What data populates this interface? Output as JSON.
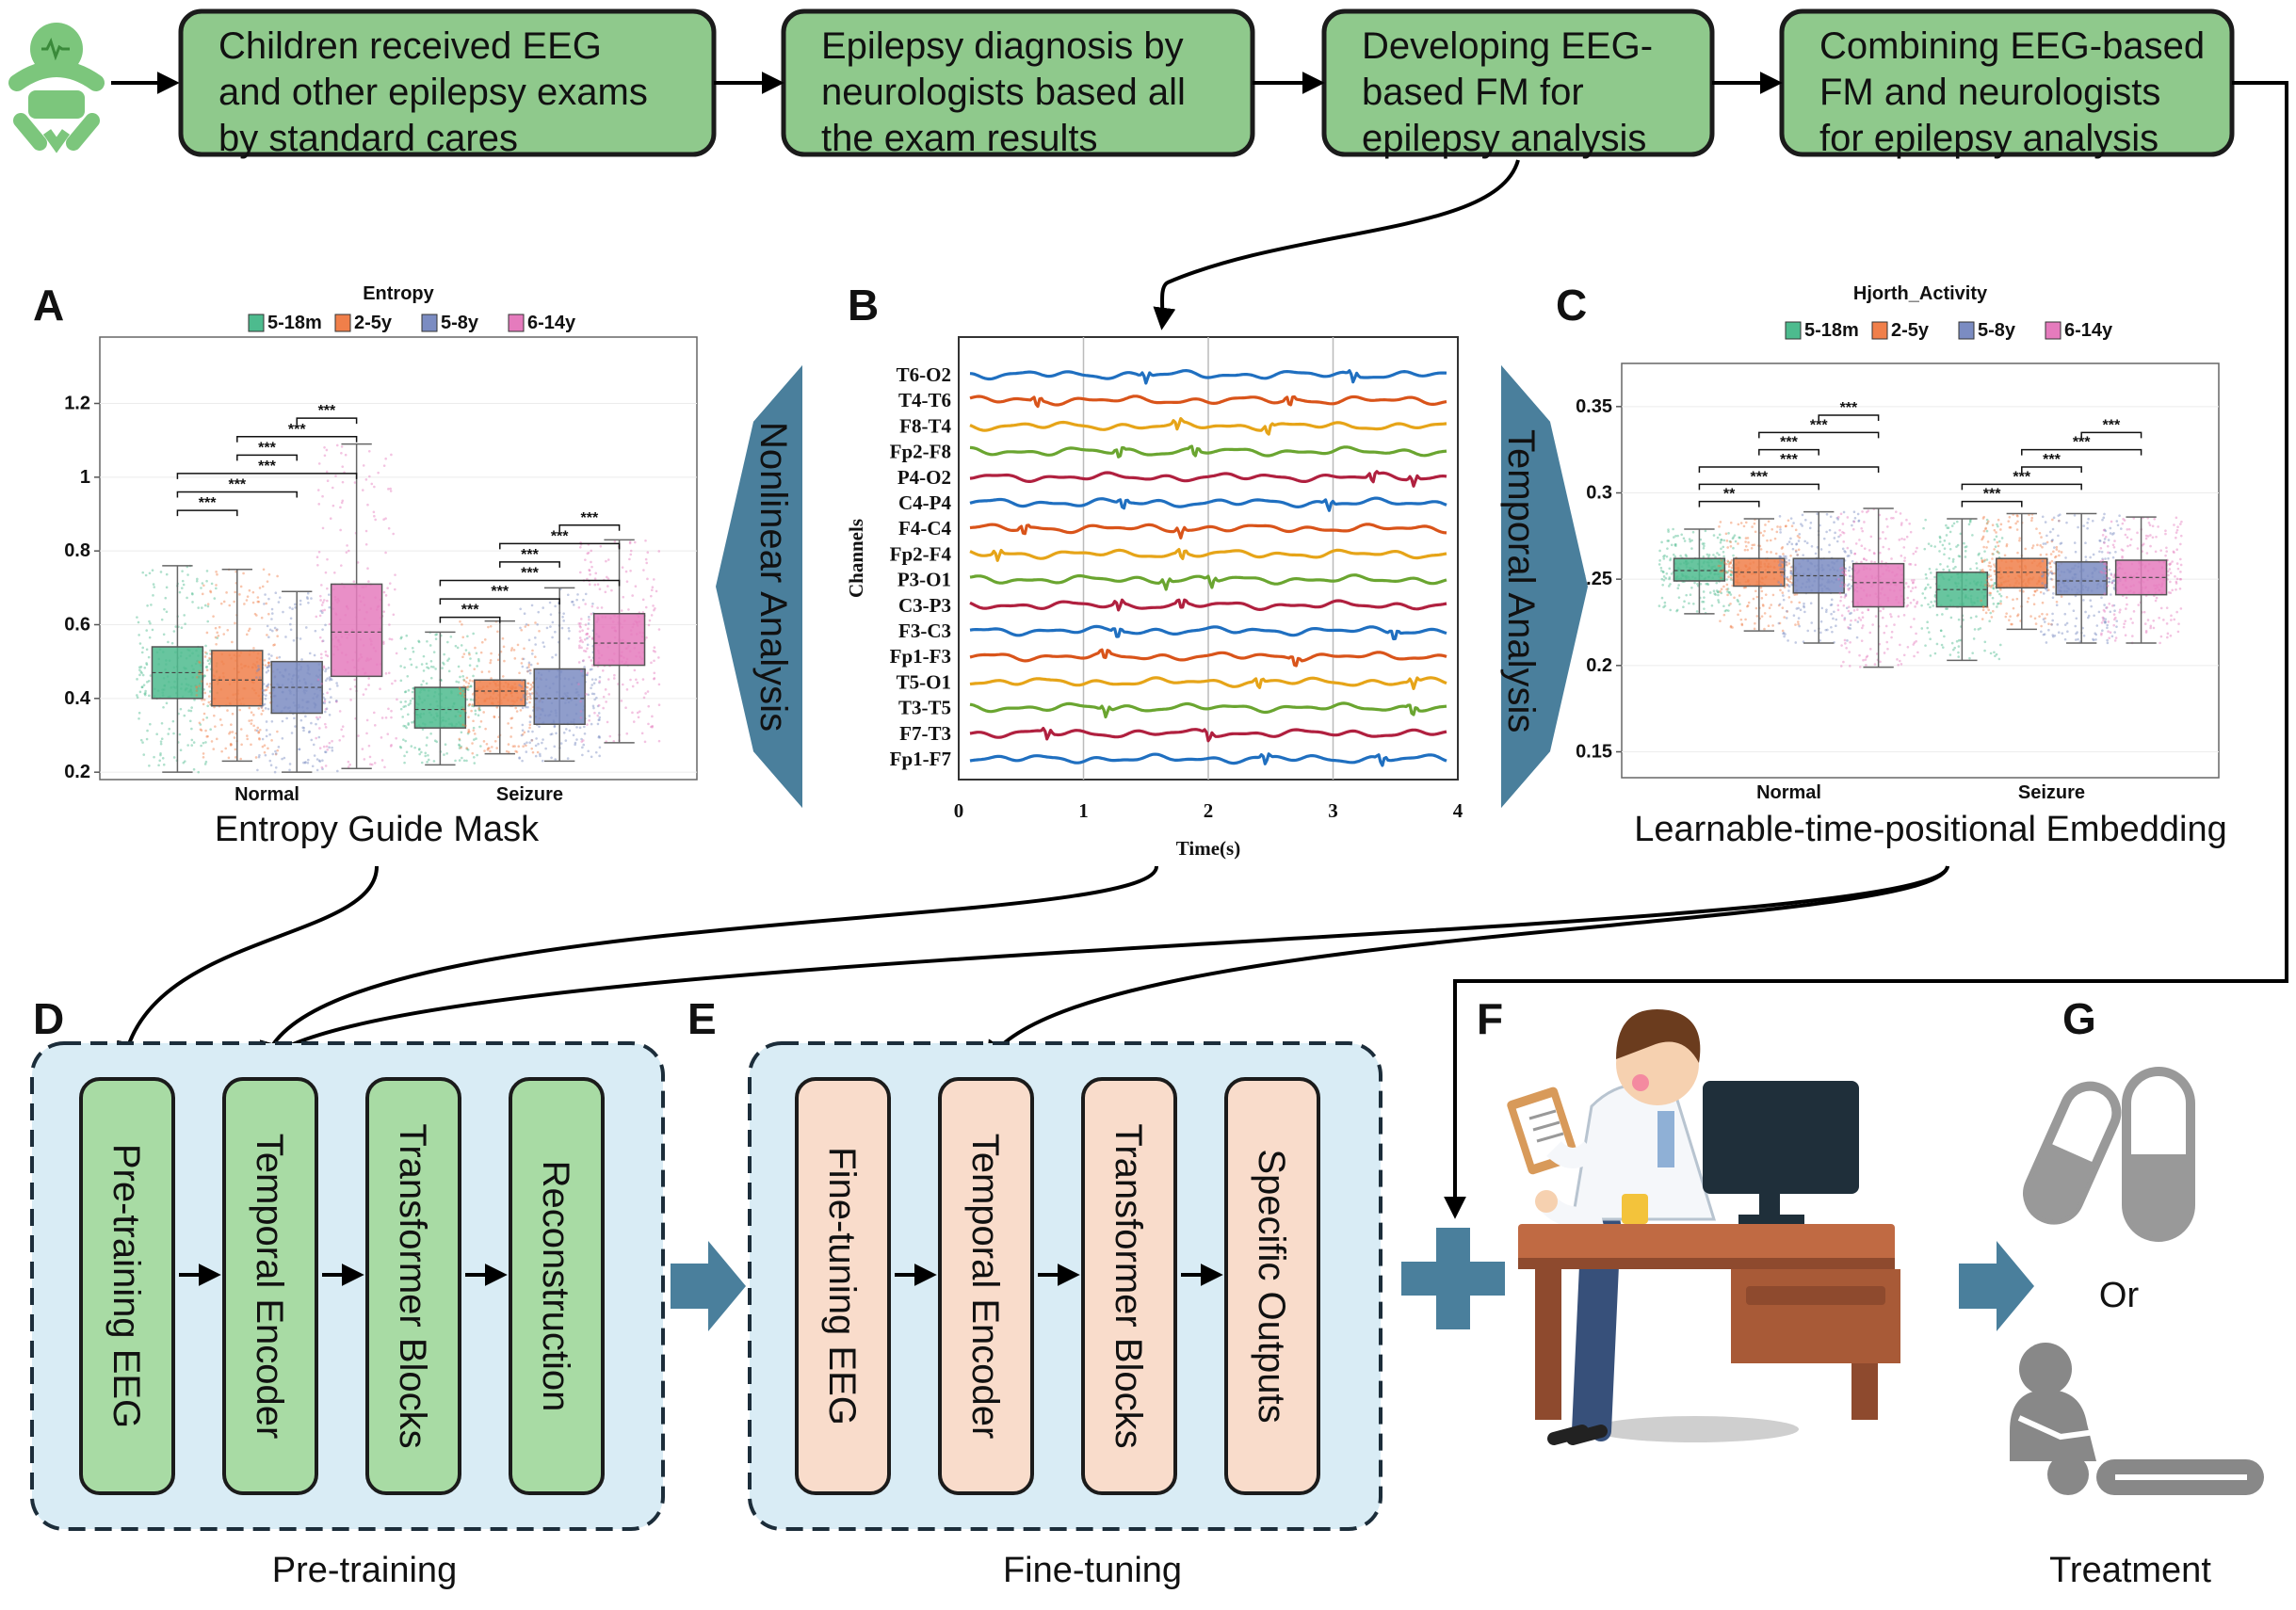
{
  "flow": [
    {
      "lines": [
        "Children received EEG",
        "and other epilepsy exams",
        "by standard cares"
      ]
    },
    {
      "lines": [
        "Epilepsy diagnosis by",
        "neurologists based all",
        "the exam results"
      ]
    },
    {
      "lines": [
        "Developing EEG-",
        "based FM for",
        "epilepsy analysis"
      ]
    },
    {
      "lines": [
        "Combining EEG-based",
        "FM and neurologists",
        "for epilepsy analysis"
      ]
    }
  ],
  "panel_letters": [
    "A",
    "B",
    "C",
    "D",
    "E",
    "F",
    "G"
  ],
  "captions": {
    "a": "Entropy Guide Mask",
    "c": "Learnable-time-positional Embedding",
    "nonlinear": "Nonlinear Analysis",
    "temporal": "Temporal Analysis",
    "pretraining": "Pre-training",
    "finetuning": "Fine-tuning",
    "treatment": "Treatment",
    "or": "Or"
  },
  "colors": {
    "flow_box": "#8fc98c",
    "pretrain_block": "#a8dba4",
    "finetune_block": "#f9dccb",
    "module_bg": "#d9ecf5",
    "arrow_teal": "#4a7f9c",
    "group": [
      "#4dbb8e",
      "#f07f4a",
      "#7b8cc2",
      "#e57bbd"
    ]
  },
  "chart_data": [
    {
      "type": "box",
      "title": "Entropy",
      "legend": [
        "5-18m",
        "2-5y",
        "5-8y",
        "6-14y"
      ],
      "legend_position": "top",
      "categories": [
        "Normal",
        "Seizure"
      ],
      "ylim": [
        0.18,
        1.38
      ],
      "yticks": [
        {
          "v": 0.2,
          "label": "0.2"
        },
        {
          "v": 0.4,
          "label": "0.4"
        },
        {
          "v": 0.6,
          "label": "0.6"
        },
        {
          "v": 0.8,
          "label": "0.8"
        },
        {
          "v": 1.0,
          "label": "1"
        },
        {
          "v": 1.2,
          "label": "1.2"
        }
      ],
      "boxes": [
        [
          [
            0.2,
            0.4,
            0.47,
            0.54,
            0.76
          ],
          [
            0.23,
            0.38,
            0.45,
            0.53,
            0.75
          ],
          [
            0.2,
            0.36,
            0.43,
            0.5,
            0.69
          ],
          [
            0.21,
            0.46,
            0.58,
            0.71,
            1.09
          ]
        ],
        [
          [
            0.22,
            0.32,
            0.37,
            0.43,
            0.58
          ],
          [
            0.25,
            0.38,
            0.42,
            0.45,
            0.61
          ],
          [
            0.23,
            0.33,
            0.4,
            0.48,
            0.7
          ],
          [
            0.28,
            0.49,
            0.55,
            0.63,
            0.83
          ]
        ]
      ],
      "brackets": [
        {
          "cat": 0,
          "from": 0,
          "to": 1,
          "y": 0.91,
          "label": "***"
        },
        {
          "cat": 0,
          "from": 0,
          "to": 2,
          "y": 0.96,
          "label": "***"
        },
        {
          "cat": 0,
          "from": 0,
          "to": 3,
          "y": 1.01,
          "label": "***"
        },
        {
          "cat": 0,
          "from": 1,
          "to": 2,
          "y": 1.06,
          "label": "***"
        },
        {
          "cat": 0,
          "from": 1,
          "to": 3,
          "y": 1.11,
          "label": "***"
        },
        {
          "cat": 0,
          "from": 2,
          "to": 3,
          "y": 1.16,
          "label": "***"
        },
        {
          "cat": 1,
          "from": 0,
          "to": 1,
          "y": 0.62,
          "label": "***"
        },
        {
          "cat": 1,
          "from": 0,
          "to": 2,
          "y": 0.67,
          "label": "***"
        },
        {
          "cat": 1,
          "from": 0,
          "to": 3,
          "y": 0.72,
          "label": "***"
        },
        {
          "cat": 1,
          "from": 1,
          "to": 2,
          "y": 0.77,
          "label": "***"
        },
        {
          "cat": 1,
          "from": 1,
          "to": 3,
          "y": 0.82,
          "label": "***"
        },
        {
          "cat": 1,
          "from": 2,
          "to": 3,
          "y": 0.87,
          "label": "***"
        }
      ]
    },
    {
      "type": "line",
      "xlabel": "Time(s)",
      "ylabel": "Channels",
      "xlim": [
        0,
        4
      ],
      "xticks": [
        "0",
        "1",
        "2",
        "3",
        "4"
      ],
      "channels": [
        "T6-O2",
        "T4-T6",
        "F8-T4",
        "Fp2-F8",
        "P4-O2",
        "C4-P4",
        "F4-C4",
        "Fp2-F4",
        "P3-O1",
        "C3-P3",
        "F3-C3",
        "Fp1-F3",
        "T5-O1",
        "T3-T5",
        "F7-T3",
        "Fp1-F7"
      ],
      "channel_colors": [
        "#1f6fc0",
        "#d9541a",
        "#e6a418",
        "#6aa530",
        "#b0203f",
        "#1f6fc0",
        "#d9541a",
        "#e6a418",
        "#6aa530",
        "#b0203f",
        "#1f6fc0",
        "#d9541a",
        "#e6a418",
        "#6aa530",
        "#b0203f",
        "#1f6fc0"
      ]
    },
    {
      "type": "box",
      "title": "Hjorth_Activity",
      "legend": [
        "5-18m",
        "2-5y",
        "5-8y",
        "6-14y"
      ],
      "legend_position": "top",
      "categories": [
        "Normal",
        "Seizure"
      ],
      "ylim": [
        0.135,
        0.375
      ],
      "yticks": [
        {
          "v": 0.15,
          "label": "0.15"
        },
        {
          "v": 0.2,
          "label": "0.2"
        },
        {
          "v": 0.25,
          "label": "0.25"
        },
        {
          "v": 0.3,
          "label": "0.3"
        },
        {
          "v": 0.35,
          "label": "0.35"
        }
      ],
      "boxes": [
        [
          [
            0.23,
            0.249,
            0.255,
            0.262,
            0.279
          ],
          [
            0.22,
            0.246,
            0.254,
            0.262,
            0.285
          ],
          [
            0.213,
            0.242,
            0.252,
            0.262,
            0.289
          ],
          [
            0.199,
            0.234,
            0.248,
            0.259,
            0.291
          ]
        ],
        [
          [
            0.203,
            0.234,
            0.244,
            0.254,
            0.285
          ],
          [
            0.221,
            0.245,
            0.254,
            0.262,
            0.288
          ],
          [
            0.213,
            0.241,
            0.249,
            0.26,
            0.288
          ],
          [
            0.213,
            0.241,
            0.251,
            0.261,
            0.286
          ]
        ]
      ],
      "brackets": [
        {
          "cat": 0,
          "from": 0,
          "to": 1,
          "y": 0.295,
          "label": "**"
        },
        {
          "cat": 0,
          "from": 0,
          "to": 2,
          "y": 0.305,
          "label": "***"
        },
        {
          "cat": 0,
          "from": 0,
          "to": 3,
          "y": 0.315,
          "label": "***"
        },
        {
          "cat": 0,
          "from": 1,
          "to": 2,
          "y": 0.325,
          "label": "***"
        },
        {
          "cat": 0,
          "from": 1,
          "to": 3,
          "y": 0.335,
          "label": "***"
        },
        {
          "cat": 0,
          "from": 2,
          "to": 3,
          "y": 0.345,
          "label": "***"
        },
        {
          "cat": 1,
          "from": 0,
          "to": 1,
          "y": 0.295,
          "label": "***"
        },
        {
          "cat": 1,
          "from": 0,
          "to": 2,
          "y": 0.305,
          "label": "***"
        },
        {
          "cat": 1,
          "from": 1,
          "to": 2,
          "y": 0.315,
          "label": "***"
        },
        {
          "cat": 1,
          "from": 1,
          "to": 3,
          "y": 0.325,
          "label": "***"
        },
        {
          "cat": 1,
          "from": 2,
          "to": 3,
          "y": 0.335,
          "label": "***"
        }
      ]
    }
  ],
  "pretraining_blocks": [
    "Pre-training EEG",
    "Temporal Encoder",
    "Transformer Blocks",
    "Reconstruction"
  ],
  "finetuning_blocks": [
    "Fine-tuning EEG",
    "Temporal Encoder",
    "Transformer Blocks",
    "Specific Outputs"
  ],
  "icons": {
    "baby": "baby-icon",
    "doctor": "doctor-at-desk-icon",
    "pill": "medication-capsule-icon",
    "surgery": "surgery-patient-icon",
    "plus": "plus-icon"
  }
}
